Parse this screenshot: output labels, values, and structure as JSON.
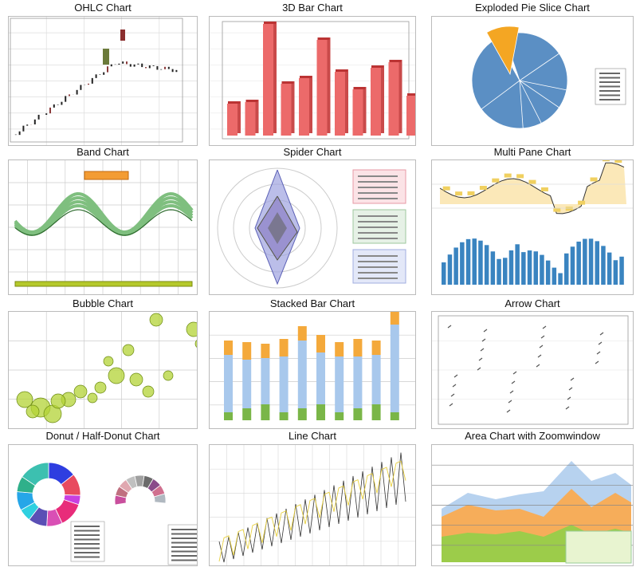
{
  "gallery": {
    "items": [
      {
        "title": "OHLC Chart"
      },
      {
        "title": "3D Bar Chart"
      },
      {
        "title": "Exploded Pie Slice Chart"
      },
      {
        "title": "Band Chart"
      },
      {
        "title": "Spider Chart"
      },
      {
        "title": "Multi Pane Chart"
      },
      {
        "title": "Bubble Chart"
      },
      {
        "title": "Stacked Bar Chart"
      },
      {
        "title": "Arrow Chart"
      },
      {
        "title": "Donut / Half-Donut Chart"
      },
      {
        "title": "Line Chart"
      },
      {
        "title": "Area Chart with Zoomwindow"
      }
    ]
  }
}
